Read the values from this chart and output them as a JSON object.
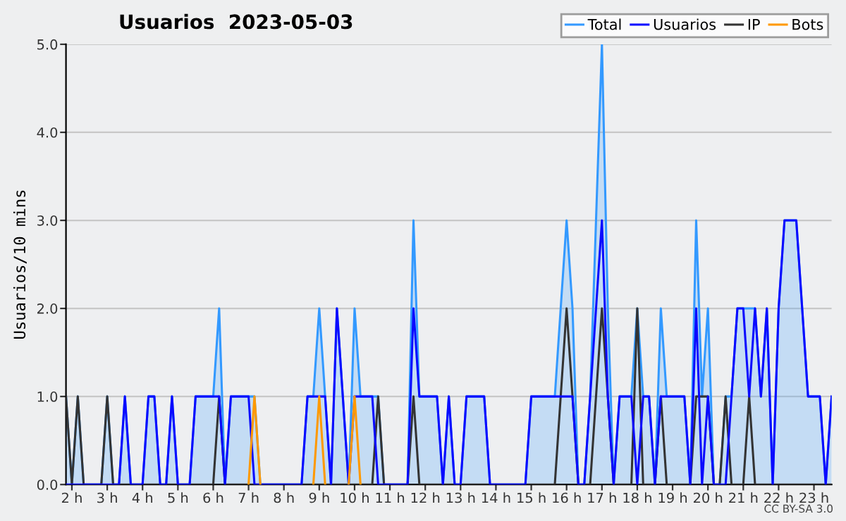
{
  "chart_data": {
    "type": "line",
    "title": "Usuarios  2023-05-03",
    "ylabel": "Usuarios/10 mins",
    "annotations": [
      "CC BY-SA 3.0"
    ],
    "x": [
      1.833,
      2.0,
      2.167,
      2.333,
      2.5,
      2.667,
      2.833,
      3.0,
      3.167,
      3.333,
      3.5,
      3.667,
      3.833,
      4.0,
      4.167,
      4.333,
      4.5,
      4.667,
      4.833,
      5.0,
      5.167,
      5.333,
      5.5,
      5.667,
      5.833,
      6.0,
      6.167,
      6.333,
      6.5,
      6.667,
      6.833,
      7.0,
      7.167,
      7.333,
      7.5,
      7.667,
      7.833,
      8.0,
      8.167,
      8.333,
      8.5,
      8.667,
      8.833,
      9.0,
      9.167,
      9.333,
      9.5,
      9.667,
      9.833,
      10.0,
      10.167,
      10.333,
      10.5,
      10.667,
      10.833,
      11.0,
      11.167,
      11.333,
      11.5,
      11.667,
      11.833,
      12.0,
      12.167,
      12.333,
      12.5,
      12.667,
      12.833,
      13.0,
      13.167,
      13.333,
      13.5,
      13.667,
      13.833,
      14.0,
      14.167,
      14.333,
      14.5,
      14.667,
      14.833,
      15.0,
      15.167,
      15.333,
      15.5,
      15.667,
      15.833,
      16.0,
      16.167,
      16.333,
      16.5,
      16.667,
      16.833,
      17.0,
      17.167,
      17.333,
      17.5,
      17.667,
      17.833,
      18.0,
      18.167,
      18.333,
      18.5,
      18.667,
      18.833,
      19.0,
      19.167,
      19.333,
      19.5,
      19.667,
      19.833,
      20.0,
      20.167,
      20.333,
      20.5,
      20.667,
      20.833,
      21.0,
      21.167,
      21.333,
      21.5,
      21.667,
      21.833,
      22.0,
      22.167,
      22.333,
      22.5,
      22.667,
      22.833,
      23.0,
      23.167,
      23.333,
      23.5
    ],
    "series": [
      {
        "name": "Total",
        "type": "area",
        "color": "#3399ff",
        "values": [
          1,
          0,
          1,
          0,
          0,
          0,
          0,
          1,
          0,
          0,
          1,
          0,
          0,
          0,
          1,
          1,
          0,
          0,
          1,
          0,
          0,
          0,
          1,
          1,
          1,
          1,
          2,
          0,
          1,
          1,
          1,
          1,
          1,
          0,
          0,
          0,
          0,
          0,
          0,
          0,
          0,
          1,
          1,
          2,
          1,
          0,
          2,
          1,
          0,
          2,
          1,
          1,
          1,
          1,
          0,
          0,
          0,
          0,
          0,
          3,
          1,
          1,
          1,
          1,
          0,
          1,
          0,
          0,
          1,
          1,
          1,
          1,
          0,
          0,
          0,
          0,
          0,
          0,
          0,
          1,
          1,
          1,
          1,
          1,
          2,
          3,
          2,
          0,
          0,
          1,
          3,
          5,
          2,
          0,
          1,
          1,
          1,
          2,
          1,
          1,
          0,
          2,
          1,
          1,
          1,
          1,
          0,
          3,
          1,
          2,
          0,
          0,
          1,
          1,
          2,
          2,
          2,
          2,
          1,
          2,
          0,
          2,
          3,
          3,
          3,
          2,
          1,
          1,
          1,
          0,
          1
        ]
      },
      {
        "name": "Usuarios",
        "type": "line",
        "color": "#0a0aff",
        "values": [
          0,
          0,
          0,
          0,
          0,
          0,
          0,
          0,
          0,
          0,
          1,
          0,
          0,
          0,
          1,
          1,
          0,
          0,
          1,
          0,
          0,
          0,
          1,
          1,
          1,
          1,
          1,
          0,
          1,
          1,
          1,
          1,
          0,
          0,
          0,
          0,
          0,
          0,
          0,
          0,
          0,
          1,
          1,
          1,
          1,
          0,
          2,
          1,
          0,
          1,
          1,
          1,
          1,
          0,
          0,
          0,
          0,
          0,
          0,
          2,
          1,
          1,
          1,
          1,
          0,
          1,
          0,
          0,
          1,
          1,
          1,
          1,
          0,
          0,
          0,
          0,
          0,
          0,
          0,
          1,
          1,
          1,
          1,
          1,
          1,
          1,
          1,
          0,
          0,
          1,
          2,
          3,
          1,
          0,
          1,
          1,
          1,
          0,
          1,
          1,
          0,
          1,
          1,
          1,
          1,
          1,
          0,
          2,
          0,
          1,
          0,
          0,
          0,
          1,
          2,
          2,
          1,
          2,
          1,
          2,
          0,
          2,
          3,
          3,
          3,
          2,
          1,
          1,
          1,
          0,
          1
        ]
      },
      {
        "name": "IP",
        "type": "line",
        "color": "#333333",
        "values": [
          1,
          0,
          1,
          0,
          0,
          0,
          0,
          1,
          0,
          0,
          0,
          0,
          0,
          0,
          0,
          0,
          0,
          0,
          0,
          0,
          0,
          0,
          0,
          0,
          0,
          0,
          1,
          0,
          0,
          0,
          0,
          0,
          0,
          0,
          0,
          0,
          0,
          0,
          0,
          0,
          0,
          0,
          0,
          0,
          0,
          0,
          0,
          0,
          0,
          0,
          0,
          0,
          0,
          1,
          0,
          0,
          0,
          0,
          0,
          1,
          0,
          0,
          0,
          0,
          0,
          0,
          0,
          0,
          0,
          0,
          0,
          0,
          0,
          0,
          0,
          0,
          0,
          0,
          0,
          0,
          0,
          0,
          0,
          0,
          1,
          2,
          1,
          0,
          0,
          0,
          1,
          2,
          1,
          0,
          0,
          0,
          0,
          2,
          0,
          0,
          0,
          1,
          0,
          0,
          0,
          0,
          0,
          1,
          1,
          1,
          0,
          0,
          1,
          0,
          0,
          0,
          1,
          0,
          0,
          0,
          0,
          0,
          0,
          0,
          0,
          0,
          0,
          0,
          0,
          0,
          0
        ]
      },
      {
        "name": "Bots",
        "type": "line",
        "color": "#ff9900",
        "values": [
          null,
          null,
          null,
          null,
          null,
          null,
          null,
          null,
          null,
          null,
          null,
          null,
          null,
          null,
          null,
          null,
          null,
          null,
          null,
          null,
          null,
          null,
          null,
          null,
          null,
          null,
          null,
          null,
          null,
          null,
          null,
          0,
          1,
          0,
          null,
          null,
          null,
          null,
          null,
          null,
          null,
          null,
          0,
          1,
          0,
          null,
          null,
          null,
          0,
          1,
          0,
          null,
          null,
          null,
          null,
          null,
          null,
          null,
          null,
          null,
          null,
          null,
          null,
          null,
          null,
          null,
          null,
          null,
          null,
          null,
          null,
          null,
          null,
          null,
          null,
          null,
          null,
          null,
          null,
          null,
          null,
          null,
          null,
          null,
          null,
          null,
          null,
          null,
          null,
          null,
          null,
          null,
          null,
          null,
          null,
          null,
          null,
          null,
          null,
          null,
          null,
          null,
          null,
          null,
          null,
          null,
          null,
          null,
          null,
          null,
          null,
          null,
          null,
          null,
          null,
          null,
          null,
          null,
          null,
          null,
          null,
          null,
          null,
          null,
          null,
          null,
          null,
          null,
          null,
          null,
          null
        ]
      }
    ],
    "xlim": [
      1.833,
      23.5
    ],
    "xticks": [
      {
        "value": 2,
        "label": "2 h"
      },
      {
        "value": 3,
        "label": "3 h"
      },
      {
        "value": 4,
        "label": "4 h"
      },
      {
        "value": 5,
        "label": "5 h"
      },
      {
        "value": 6,
        "label": "6 h"
      },
      {
        "value": 7,
        "label": "7 h"
      },
      {
        "value": 8,
        "label": "8 h"
      },
      {
        "value": 9,
        "label": "9 h"
      },
      {
        "value": 10,
        "label": "10 h"
      },
      {
        "value": 11,
        "label": "11 h"
      },
      {
        "value": 12,
        "label": "12 h"
      },
      {
        "value": 13,
        "label": "13 h"
      },
      {
        "value": 14,
        "label": "14 h"
      },
      {
        "value": 15,
        "label": "15 h"
      },
      {
        "value": 16,
        "label": "16 h"
      },
      {
        "value": 17,
        "label": "17 h"
      },
      {
        "value": 18,
        "label": "18 h"
      },
      {
        "value": 19,
        "label": "19 h"
      },
      {
        "value": 20,
        "label": "20 h"
      },
      {
        "value": 21,
        "label": "21 h"
      },
      {
        "value": 22,
        "label": "22 h"
      },
      {
        "value": 23,
        "label": "23 h"
      }
    ],
    "ylim": [
      0,
      5
    ],
    "yticks": [
      {
        "value": 0,
        "label": "0.0"
      },
      {
        "value": 1,
        "label": "1.0"
      },
      {
        "value": 2,
        "label": "2.0"
      },
      {
        "value": 3,
        "label": "3.0"
      },
      {
        "value": 4,
        "label": "4.0"
      },
      {
        "value": 5,
        "label": "5.0"
      }
    ],
    "grid": "y",
    "legend": "top right",
    "marker": "none",
    "line_style": "solid"
  }
}
